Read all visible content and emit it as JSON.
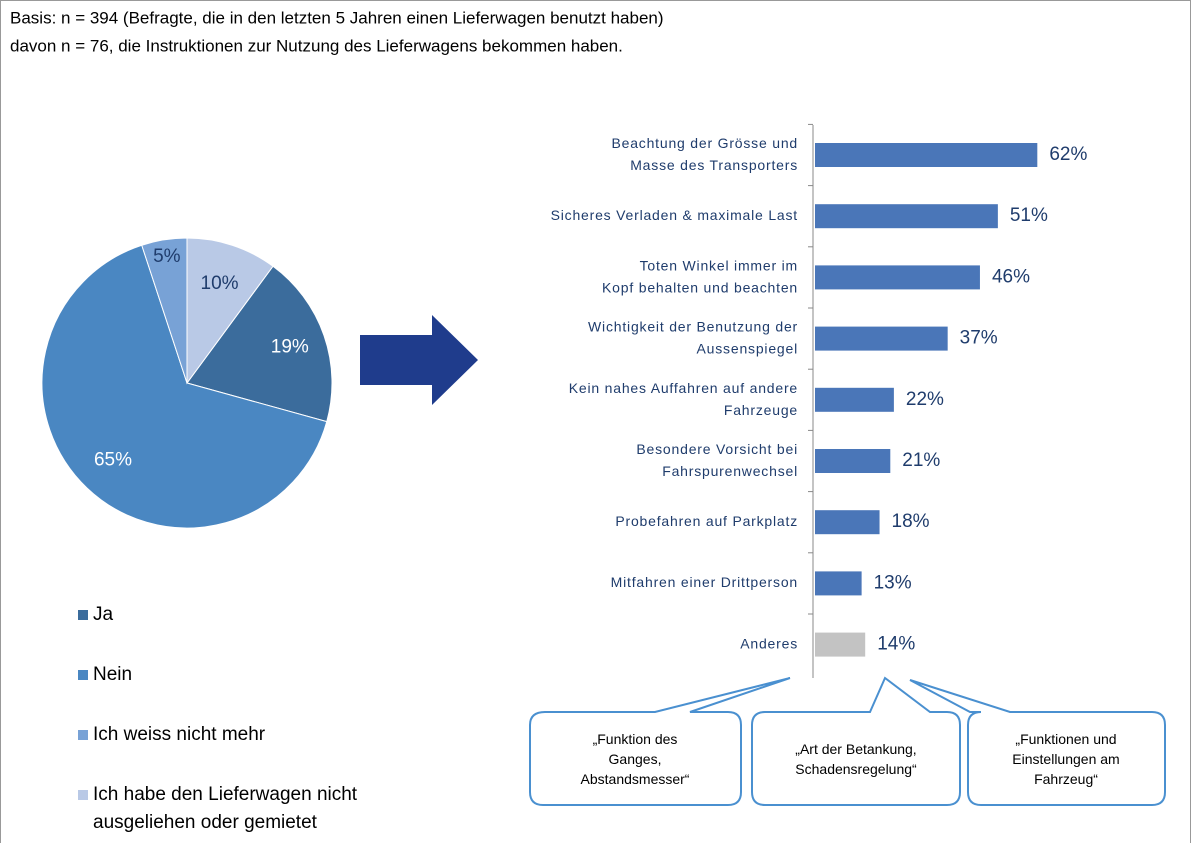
{
  "header": [
    "Basis: n = 394 (Befragte, die in den letzten 5 Jahren einen Lieferwagen benutzt haben)",
    "davon n = 76, die Instruktionen zur Nutzung des Lieferwagens bekommen haben."
  ],
  "callouts": [
    "„Funktion des\nGanges,\nAbstandsmesser“",
    "„Art der Betankung,\nSchadensregelung“",
    "„Funktionen und\nEinstellungen am\nFahrzeug“"
  ],
  "chart_data": [
    {
      "type": "pie",
      "categories": [
        "Ja",
        "Nein",
        "Ich weiss nicht mehr",
        "Ich habe den Lieferwagen nicht\nausgeliehen oder gemietet"
      ],
      "values": [
        19,
        65,
        5,
        10
      ],
      "value_labels": [
        "19%",
        "65%",
        "5%",
        "10%"
      ],
      "colors": [
        "#3b6c9c",
        "#4a87c2",
        "#78a2d6",
        "#b9c9e6"
      ],
      "legend": "bottom"
    },
    {
      "type": "hbar",
      "categories": [
        "Beachtung der Grösse und\nMasse des Transporters",
        "Sicheres Verladen & maximale Last",
        "Toten Winkel immer im\nKopf behalten und beachten",
        "Wichtigkeit der Benutzung der\nAussenspiegel",
        "Kein nahes Auffahren auf andere\nFahrzeuge",
        "Besondere Vorsicht bei\nFahrspurenwechsel",
        "Probefahren auf Parkplatz",
        "Mitfahren einer Drittperson",
        "Anderes"
      ],
      "values": [
        62,
        51,
        46,
        37,
        22,
        21,
        18,
        13,
        14
      ],
      "value_labels": [
        "62%",
        "51%",
        "46%",
        "37%",
        "22%",
        "21%",
        "18%",
        "13%",
        "14%"
      ],
      "colors": [
        "#4a76b8",
        "#4a76b8",
        "#4a76b8",
        "#4a76b8",
        "#4a76b8",
        "#4a76b8",
        "#4a76b8",
        "#4a76b8",
        "#c3c3c3"
      ],
      "xlim": [
        0,
        70
      ]
    }
  ]
}
